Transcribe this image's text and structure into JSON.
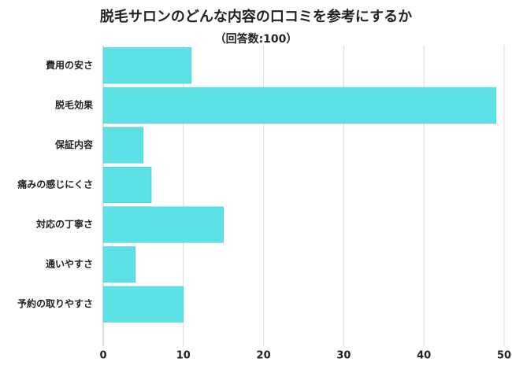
{
  "chart_data": {
    "type": "bar",
    "orientation": "horizontal",
    "title": "脱毛サロンのどんな内容の口コミを参考にするか",
    "subtitle": "（回答数:100）",
    "categories": [
      "費用の安さ",
      "脱毛効果",
      "保証内容",
      "痛みの感じにくさ",
      "対応の丁寧さ",
      "通いやすさ",
      "予約の取りやすさ"
    ],
    "values": [
      11,
      49,
      5,
      6,
      15,
      4,
      10
    ],
    "color": "#5ce1e6",
    "xlim": [
      0,
      50
    ],
    "xticks": [
      0,
      10,
      20,
      30,
      40,
      50
    ],
    "grid": true
  }
}
